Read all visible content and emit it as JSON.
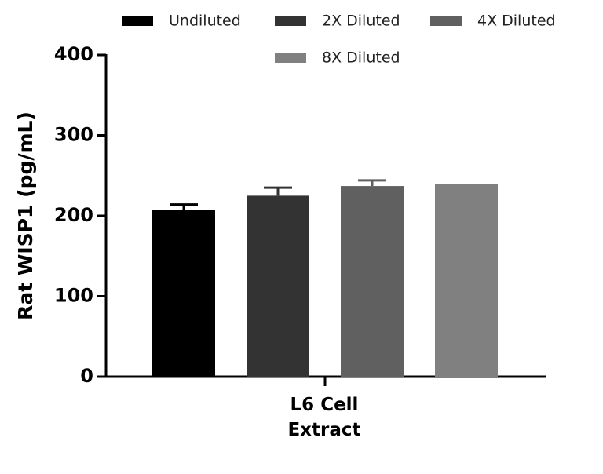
{
  "chart_data": {
    "type": "bar",
    "y_label": "Rat WISP1 (pg/mL)",
    "categories": [
      "L6 Cell Extract"
    ],
    "series": [
      {
        "name": "Undiluted",
        "color": "#000000",
        "values": [
          207
        ],
        "errors": [
          7
        ]
      },
      {
        "name": "2X Diluted",
        "color": "#333333",
        "values": [
          225
        ],
        "errors": [
          10
        ]
      },
      {
        "name": "4X Diluted",
        "color": "#606060",
        "values": [
          237
        ],
        "errors": [
          7
        ]
      },
      {
        "name": "8X Diluted",
        "color": "#808080",
        "values": [
          240
        ],
        "errors": [
          0
        ]
      }
    ],
    "ylim": [
      0,
      400
    ],
    "yticks": [
      0,
      100,
      200,
      300,
      400
    ],
    "grid": false
  }
}
